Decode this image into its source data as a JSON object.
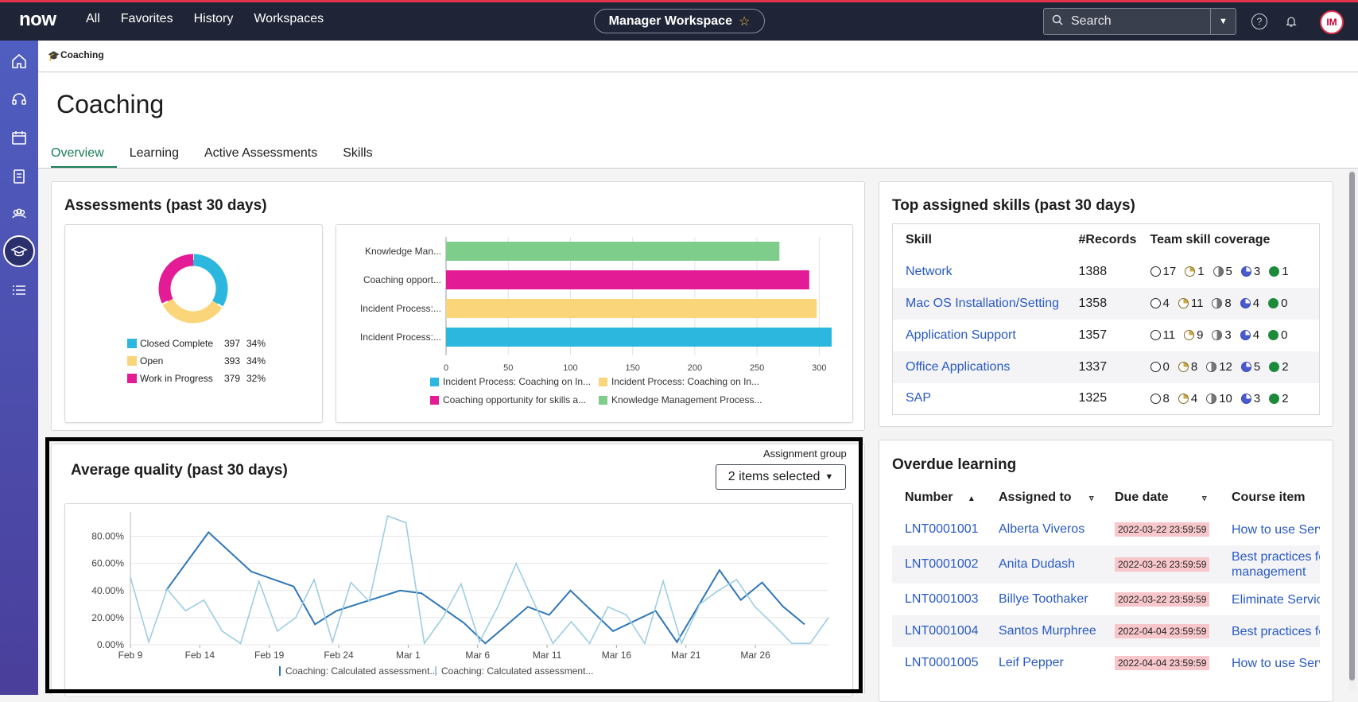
{
  "topbar": {
    "logo": "now",
    "nav": [
      "All",
      "Favorites",
      "History",
      "Workspaces"
    ],
    "workspace": "Manager Workspace",
    "search_placeholder": "Search",
    "avatar_initials": "IM"
  },
  "breadcrumb": {
    "label": "Coaching"
  },
  "page": {
    "title": "Coaching",
    "tabs": [
      "Overview",
      "Learning",
      "Active Assessments",
      "Skills"
    ]
  },
  "assessments": {
    "title": "Assessments (past 30 days)",
    "donut": [
      {
        "name": "Closed Complete",
        "count": "397",
        "pct": "34%",
        "color": "#2bb7de"
      },
      {
        "name": "Open",
        "count": "393",
        "pct": "34%",
        "color": "#fbd57a"
      },
      {
        "name": "Work in Progress",
        "count": "379",
        "pct": "32%",
        "color": "#e31c96"
      }
    ],
    "bar_chart": {
      "type": "bar",
      "categories": [
        "Knowledge Man...",
        "Coaching opport...",
        "Incident Process:...",
        "Incident Process:..."
      ],
      "values": [
        268,
        292,
        298,
        310
      ],
      "colors": [
        "#7fcd8a",
        "#e31c96",
        "#fbd57a",
        "#2bb7de"
      ],
      "xticks": [
        "0",
        "50",
        "100",
        "150",
        "200",
        "250",
        "300"
      ],
      "xlim": [
        0,
        310
      ],
      "legend": [
        {
          "name": "Incident Process: Coaching on In...",
          "color": "#2bb7de"
        },
        {
          "name": "Incident Process: Coaching on In...",
          "color": "#fbd57a"
        },
        {
          "name": "Coaching opportunity for skills a...",
          "color": "#e31c96"
        },
        {
          "name": "Knowledge Management Process...",
          "color": "#7fcd8a"
        }
      ]
    }
  },
  "quality": {
    "title": "Average quality (past 30 days)",
    "assignment_label": "Assignment group",
    "assignment_value": "2 items selected",
    "chart_data": {
      "type": "line",
      "yticks": [
        "0.00%",
        "20.00%",
        "40.00%",
        "60.00%",
        "80.00%"
      ],
      "ylim": [
        0,
        95
      ],
      "xticks": [
        "Feb 9",
        "Feb 14",
        "Feb 19",
        "Feb 24",
        "Mar 1",
        "Mar 6",
        "Mar 11",
        "Mar 16",
        "Mar 21",
        "Mar 26"
      ],
      "x_days": 48,
      "series": [
        {
          "name": "Coaching: Calculated assessment...",
          "color": "#2e76b7",
          "values": [
            null,
            40,
            null,
            83,
            null,
            54,
            null,
            43,
            15,
            25,
            30,
            35,
            40,
            38,
            null,
            16,
            1,
            null,
            28,
            22,
            40,
            25,
            10,
            null,
            25,
            2,
            null,
            55,
            33,
            46,
            28,
            15
          ]
        },
        {
          "name": "Coaching: Calculated assessment...",
          "color": "#9dcde3",
          "values": [
            50,
            2,
            41,
            25,
            33,
            10,
            1,
            47,
            10,
            20,
            48,
            2,
            46,
            32,
            95,
            90,
            1,
            20,
            45,
            2,
            28,
            60,
            30,
            1,
            17,
            1,
            28,
            22,
            1,
            47,
            1,
            30,
            40,
            48,
            28,
            15,
            1,
            1,
            20
          ]
        }
      ]
    }
  },
  "skills": {
    "title": "Top assigned skills (past 30 days)",
    "headers": [
      "Skill",
      "#Records",
      "Team skill coverage"
    ],
    "rows": [
      {
        "name": "Network",
        "records": "1388",
        "cov": [
          "17",
          "1",
          "5",
          "3",
          "1"
        ]
      },
      {
        "name": "Mac OS Installation/Setting",
        "records": "1358",
        "cov": [
          "4",
          "11",
          "8",
          "4",
          "0"
        ]
      },
      {
        "name": "Application Support",
        "records": "1357",
        "cov": [
          "11",
          "9",
          "3",
          "4",
          "0"
        ]
      },
      {
        "name": "Office Applications",
        "records": "1337",
        "cov": [
          "0",
          "8",
          "12",
          "5",
          "2"
        ]
      },
      {
        "name": "SAP",
        "records": "1325",
        "cov": [
          "8",
          "4",
          "10",
          "3",
          "2"
        ]
      }
    ]
  },
  "overdue": {
    "title": "Overdue learning",
    "headers": [
      "Number",
      "Assigned to",
      "Due date",
      "Course item"
    ],
    "rows": [
      {
        "number": "LNT0001001",
        "assigned": "Alberta Viveros",
        "due": "2022-03-22 23:59:59",
        "course": "How to use Serv"
      },
      {
        "number": "LNT0001002",
        "assigned": "Anita Dudash",
        "due": "2022-03-26 23:59:59",
        "course": "Best practices fo management"
      },
      {
        "number": "LNT0001003",
        "assigned": "Billye Toothaker",
        "due": "2022-03-22 23:59:59",
        "course": "Eliminate Servic"
      },
      {
        "number": "LNT0001004",
        "assigned": "Santos Murphree",
        "due": "2022-04-04 23:59:59",
        "course": "Best practices fo"
      },
      {
        "number": "LNT0001005",
        "assigned": "Leif Pepper",
        "due": "2022-04-04 23:59:59",
        "course": "How to use Serv"
      }
    ]
  }
}
